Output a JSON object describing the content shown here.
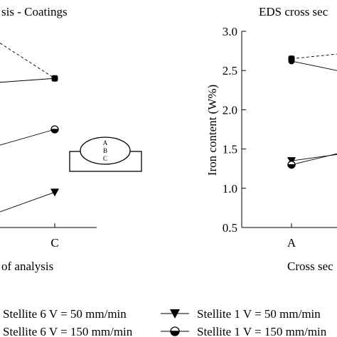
{
  "chart_data": [
    {
      "type": "line",
      "title": "sis - Coatings",
      "xlabel": "of analysis",
      "ylabel": "",
      "categories": [
        "C"
      ],
      "inset_labels": [
        "A",
        "B",
        "C"
      ],
      "series": [
        {
          "marker": "square",
          "style": "solid",
          "values": [
            2.4
          ]
        },
        {
          "marker": "half-filled-circle",
          "style": "solid",
          "values": [
            1.75
          ]
        },
        {
          "marker": "down-triangle",
          "style": "solid",
          "values": [
            0.95
          ]
        },
        {
          "marker": "none",
          "style": "dashed",
          "values": [
            2.4
          ]
        }
      ]
    },
    {
      "type": "line",
      "title": "EDS cross sec",
      "xlabel": "Cross sec",
      "ylabel": "Iron content (W%)",
      "ylim": [
        0.5,
        3.0
      ],
      "yticks": [
        "0.5",
        "1.0",
        "1.5",
        "2.0",
        "2.5",
        "3.0"
      ],
      "categories": [
        "A"
      ],
      "series": [
        {
          "marker": "square",
          "style": "dashed",
          "values": [
            2.65
          ]
        },
        {
          "marker": "circle",
          "style": "solid",
          "values": [
            2.62
          ]
        },
        {
          "marker": "down-triangle",
          "style": "solid",
          "values": [
            1.35
          ]
        },
        {
          "marker": "half-filled-circle",
          "style": "solid",
          "values": [
            1.3
          ]
        }
      ]
    }
  ],
  "legend": [
    {
      "label": "Stellite 6 V = 50 mm/min",
      "marker": "none"
    },
    {
      "label": "Stellite 1 V = 50 mm/min",
      "marker": "down-triangle"
    },
    {
      "label": "Stellite 6 V = 150 mm/min",
      "marker": "none"
    },
    {
      "label": "Stellite 1 V = 150 mm/min",
      "marker": "half-filled-circle"
    }
  ]
}
